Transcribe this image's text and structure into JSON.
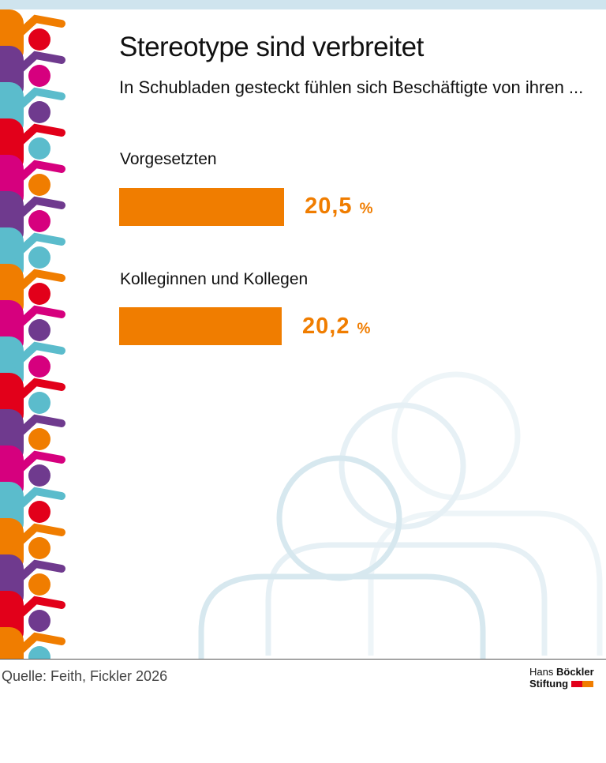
{
  "chart_data": {
    "type": "bar",
    "orientation": "horizontal",
    "title": "Stereotype sind verbreitet",
    "subtitle": "In Schubladen gesteckt fühlen sich Beschäftigte von ihren ...",
    "categories": [
      "Vorgesetzten",
      "Kolleginnen und Kollegen"
    ],
    "values": [
      20.5,
      20.2
    ],
    "value_labels": [
      "20,5",
      "20,2"
    ],
    "unit": "%",
    "bar_color": "#f07d00",
    "label_color": "#f07d00",
    "grid": false
  },
  "source": "Quelle: Feith, Fickler 2026",
  "logo": {
    "line1a": "Hans",
    "line1b": "Böckler",
    "line2": "Stiftung"
  },
  "colors": {
    "orange": "#f07d00",
    "purple": "#6f3a8e",
    "teal": "#5bbccc",
    "red": "#e2001a",
    "magenta": "#d6007e",
    "outline": "#dcebf1"
  }
}
